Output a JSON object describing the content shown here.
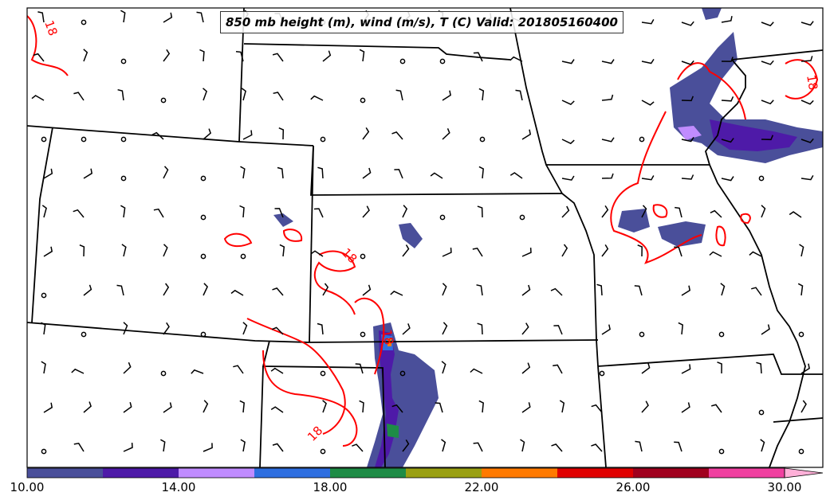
{
  "map": {
    "title": "850 mb height (m), wind (m/s), T (C) Valid: 201805160400",
    "contour_label": "18",
    "contour_color": "#ff0000",
    "boundary_color": "#000000"
  },
  "colorbar": {
    "ticks": [
      "10.00",
      "14.00",
      "18.00",
      "22.00",
      "26.00",
      "30.00"
    ],
    "colors": [
      "#4a4f9a",
      "#4e1aa8",
      "#c08cff",
      "#2e6fe0",
      "#1e8c46",
      "#9aa012",
      "#ff7a00",
      "#e00000",
      "#a0001e",
      "#f040a0",
      "#ffb0d8"
    ]
  }
}
